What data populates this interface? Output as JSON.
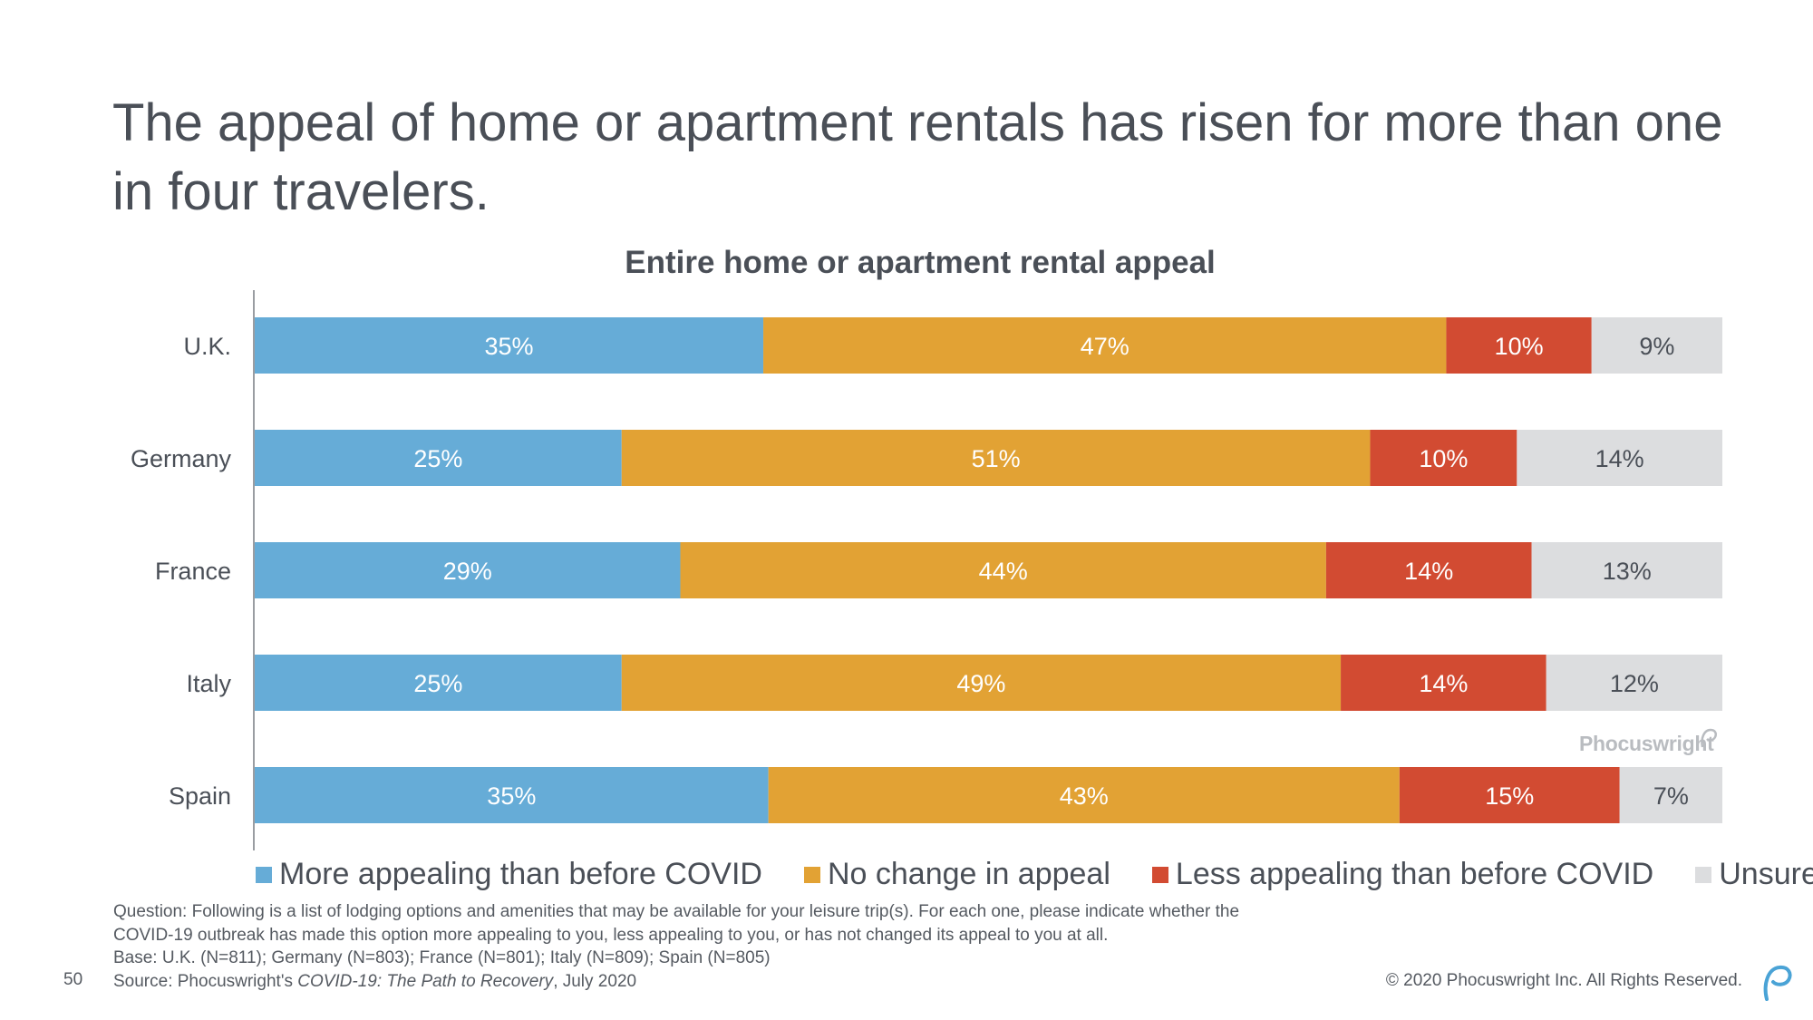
{
  "headline": "The appeal of home or apartment rentals has risen for more than one in four travelers.",
  "chart_data": {
    "type": "bar",
    "orientation": "horizontal",
    "stacked": true,
    "title": "Entire home or apartment rental appeal",
    "categories": [
      "U.K.",
      "Germany",
      "France",
      "Italy",
      "Spain"
    ],
    "series": [
      {
        "name": "More appealing than before COVID",
        "color": "#66acd7",
        "values": [
          35,
          25,
          29,
          25,
          35
        ]
      },
      {
        "name": "No change in appeal",
        "color": "#e2a234",
        "values": [
          47,
          51,
          44,
          49,
          43
        ]
      },
      {
        "name": "Less appealing than before COVID",
        "color": "#d24b32",
        "values": [
          10,
          10,
          14,
          14,
          15
        ]
      },
      {
        "name": "Unsure",
        "color": "#dcdddf",
        "values": [
          9,
          14,
          13,
          12,
          7
        ]
      }
    ],
    "value_suffix": "%",
    "legend_position": "bottom",
    "grid": false
  },
  "watermark": "Phocuswright",
  "footnote": {
    "question_line1": "Question: Following is a list of lodging options and amenities that may be available for your leisure trip(s). For each one, please indicate whether the",
    "question_line2": "COVID-19 outbreak has made this option more appealing to you, less appealing to you, or has not changed its appeal to you at all.",
    "base": "Base: U.K. (N=811); Germany (N=803); France (N=801); Italy (N=809); Spain (N=805)",
    "source_prefix": "Source: Phocuswright's ",
    "source_title": "COVID-19: The Path to Recovery",
    "source_suffix": ", July 2020"
  },
  "page_number": "50",
  "copyright": "© 2020 Phocuswright Inc. All Rights Reserved."
}
